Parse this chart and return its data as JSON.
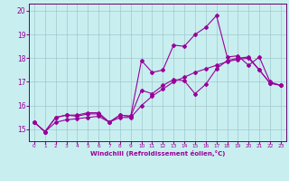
{
  "xlabel": "Windchill (Refroidissement éolien,°C)",
  "background_color": "#c8eef0",
  "grid_color": "#a0c8cc",
  "line_color": "#990099",
  "spine_color": "#660066",
  "xlim": [
    -0.5,
    23.5
  ],
  "ylim": [
    14.5,
    20.3
  ],
  "yticks": [
    15,
    16,
    17,
    18,
    19,
    20
  ],
  "xticks": [
    0,
    1,
    2,
    3,
    4,
    5,
    6,
    7,
    8,
    9,
    10,
    11,
    12,
    13,
    14,
    15,
    16,
    17,
    18,
    19,
    20,
    21,
    22,
    23
  ],
  "x": [
    0,
    1,
    2,
    3,
    4,
    5,
    6,
    7,
    8,
    9,
    10,
    11,
    12,
    13,
    14,
    15,
    16,
    17,
    18,
    19,
    20,
    21,
    22,
    23
  ],
  "y_spiky": [
    15.3,
    14.9,
    15.5,
    15.6,
    15.6,
    15.7,
    15.7,
    15.3,
    15.6,
    15.55,
    17.9,
    17.4,
    17.5,
    18.55,
    18.5,
    19.0,
    19.3,
    19.8,
    18.05,
    18.1,
    17.7,
    18.05,
    17.0,
    16.85
  ],
  "y_mid": [
    15.3,
    14.9,
    15.5,
    15.6,
    15.55,
    15.65,
    15.65,
    15.3,
    15.6,
    15.55,
    16.65,
    16.5,
    16.85,
    17.1,
    17.05,
    16.5,
    16.9,
    17.55,
    17.9,
    18.0,
    18.05,
    17.5,
    16.95,
    16.85
  ],
  "y_smooth": [
    15.3,
    14.9,
    15.3,
    15.4,
    15.45,
    15.5,
    15.55,
    15.3,
    15.5,
    15.5,
    16.0,
    16.4,
    16.7,
    17.0,
    17.2,
    17.4,
    17.55,
    17.7,
    17.85,
    17.95,
    18.0,
    17.5,
    16.95,
    16.85
  ]
}
